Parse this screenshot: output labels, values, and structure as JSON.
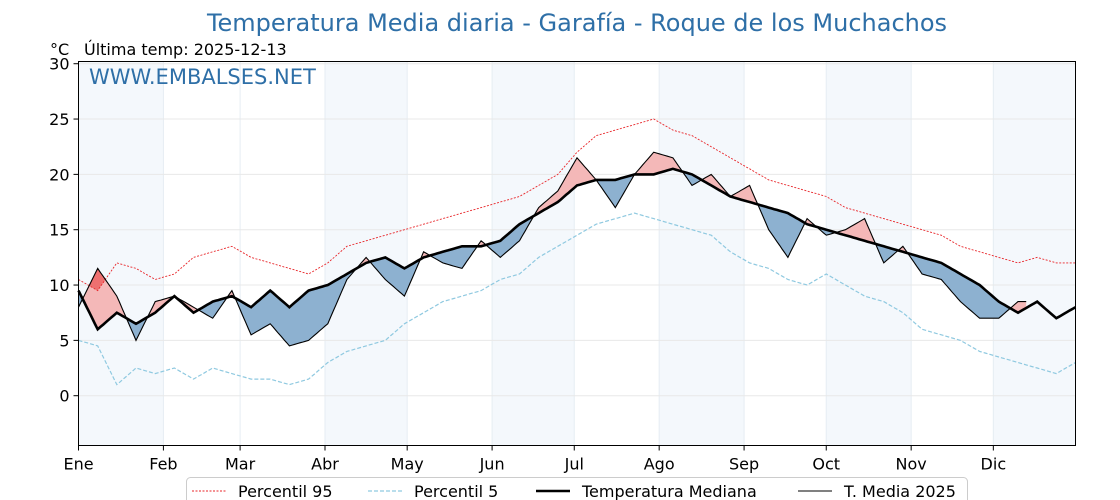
{
  "chart_data": {
    "type": "line",
    "title": "Temperatura Media diaria - Garafía - Roque de los Muchachos",
    "unit_label": "°C",
    "last_temp_label": "Última temp: 2025-12-13",
    "watermark": "WWW.EMBALSES.NET",
    "ylim": [
      -4.5,
      30.2
    ],
    "yticks": [
      0,
      5,
      10,
      15,
      20,
      25,
      30
    ],
    "month_labels": [
      "Ene",
      "Feb",
      "Mar",
      "Abr",
      "May",
      "Jun",
      "Jul",
      "Ago",
      "Sep",
      "Oct",
      "Nov",
      "Dic"
    ],
    "month_start_days": [
      1,
      32,
      60,
      91,
      121,
      152,
      182,
      213,
      244,
      274,
      305,
      335
    ],
    "days_in_year": 365,
    "last_day_2025": 347,
    "x": [
      1,
      8,
      15,
      22,
      29,
      36,
      43,
      50,
      57,
      64,
      71,
      78,
      85,
      92,
      99,
      106,
      113,
      120,
      127,
      134,
      141,
      148,
      155,
      162,
      169,
      176,
      183,
      190,
      197,
      204,
      211,
      218,
      225,
      232,
      239,
      246,
      253,
      260,
      267,
      274,
      281,
      288,
      295,
      302,
      309,
      316,
      323,
      330,
      337,
      344,
      351,
      358,
      365
    ],
    "series": [
      {
        "name": "Percentil 95",
        "color": "#e8262a",
        "values": [
          10.5,
          9.5,
          12.0,
          11.5,
          10.5,
          11.0,
          12.5,
          13.0,
          13.5,
          12.5,
          12.0,
          11.5,
          11.0,
          12.0,
          13.5,
          14.0,
          14.5,
          15.0,
          15.5,
          16.0,
          16.5,
          17.0,
          17.5,
          18.0,
          19.0,
          20.0,
          22.0,
          23.5,
          24.0,
          24.5,
          25.0,
          24.0,
          23.5,
          22.5,
          21.5,
          20.5,
          19.5,
          19.0,
          18.5,
          18.0,
          17.0,
          16.5,
          16.0,
          15.5,
          15.0,
          14.5,
          13.5,
          13.0,
          12.5,
          12.0,
          12.5,
          12.0,
          12.0
        ]
      },
      {
        "name": "Percentil 5",
        "color": "#8fc9e0",
        "values": [
          5.0,
          4.5,
          1.0,
          2.5,
          2.0,
          2.5,
          1.5,
          2.5,
          2.0,
          1.5,
          1.5,
          1.0,
          1.5,
          3.0,
          4.0,
          4.5,
          5.0,
          6.5,
          7.5,
          8.5,
          9.0,
          9.5,
          10.5,
          11.0,
          12.5,
          13.5,
          14.5,
          15.5,
          16.0,
          16.5,
          16.0,
          15.5,
          15.0,
          14.5,
          13.0,
          12.0,
          11.5,
          10.5,
          10.0,
          11.0,
          10.0,
          9.0,
          8.5,
          7.5,
          6.0,
          5.5,
          5.0,
          4.0,
          3.5,
          3.0,
          2.5,
          2.0,
          3.0
        ]
      },
      {
        "name": "Temperatura Mediana",
        "color": "#000000",
        "values": [
          9.5,
          6.0,
          7.5,
          6.5,
          7.5,
          9.0,
          7.5,
          8.5,
          9.0,
          8.0,
          9.5,
          8.0,
          9.5,
          10.0,
          11.0,
          12.0,
          12.5,
          11.5,
          12.5,
          13.0,
          13.5,
          13.5,
          14.0,
          15.5,
          16.5,
          17.5,
          19.0,
          19.5,
          19.5,
          20.0,
          20.0,
          20.5,
          20.0,
          19.0,
          18.0,
          17.5,
          17.0,
          16.5,
          15.5,
          15.0,
          14.5,
          14.0,
          13.5,
          13.0,
          12.5,
          12.0,
          11.0,
          10.0,
          8.5,
          7.5,
          8.5,
          7.0,
          8.0
        ]
      },
      {
        "name": "T. Media 2025",
        "color": "#000000",
        "values": [
          8.0,
          11.5,
          9.0,
          5.0,
          8.5,
          9.0,
          8.0,
          7.0,
          9.5,
          5.5,
          6.5,
          4.5,
          5.0,
          6.5,
          10.5,
          12.5,
          10.5,
          9.0,
          13.0,
          12.0,
          11.5,
          14.0,
          12.5,
          14.0,
          17.0,
          18.5,
          21.5,
          19.5,
          17.0,
          20.0,
          22.0,
          21.5,
          19.0,
          20.0,
          18.0,
          19.0,
          15.0,
          12.5,
          16.0,
          14.5,
          15.0,
          16.0,
          12.0,
          13.5,
          11.0,
          10.5,
          8.5,
          7.0,
          7.0,
          8.5,
          null,
          null,
          null
        ]
      }
    ],
    "legend": [
      "Percentil 95",
      "Percentil 5",
      "Temperatura Mediana",
      "T. Media 2025"
    ],
    "legend_position": "bottom-center",
    "fill_colors": {
      "above_median": "#f4b8b8",
      "above_p95": "#ee7070",
      "below_median": "#8db1d0",
      "below_p5": "#2b6ea8"
    },
    "shaded_months": [
      1,
      4,
      6,
      8,
      10,
      12
    ],
    "grid": true
  }
}
